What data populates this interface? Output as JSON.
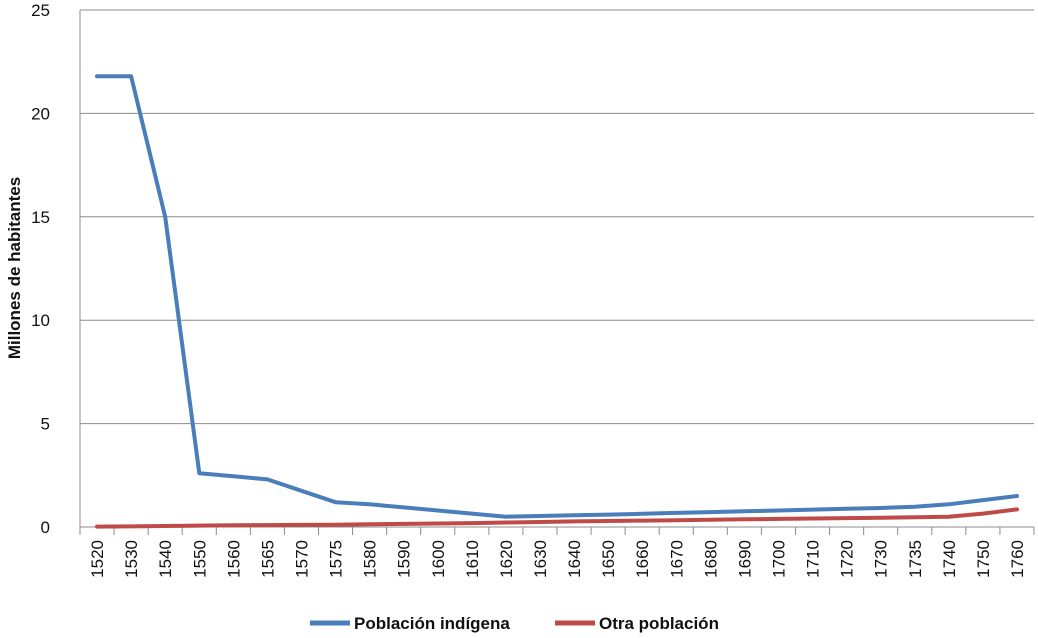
{
  "chart_data": {
    "type": "line",
    "ylabel": "Millones de habitantes",
    "ylim": [
      0,
      25
    ],
    "yticks": [
      "0",
      "5",
      "10",
      "15",
      "20",
      "25"
    ],
    "categories": [
      "1520",
      "1530",
      "1540",
      "1550",
      "1560",
      "1565",
      "1570",
      "1575",
      "1580",
      "1590",
      "1600",
      "1610",
      "1620",
      "1630",
      "1640",
      "1650",
      "1660",
      "1670",
      "1680",
      "1690",
      "1700",
      "1710",
      "1720",
      "1730",
      "1735",
      "1740",
      "1750",
      "1760"
    ],
    "series": [
      {
        "name": "Población indígena",
        "color": "#4a7ebb",
        "values": [
          21.8,
          21.8,
          15.0,
          2.6,
          2.45,
          2.3,
          1.75,
          1.2,
          1.1,
          0.95,
          0.8,
          0.65,
          0.5,
          0.53,
          0.57,
          0.6,
          0.64,
          0.68,
          0.72,
          0.76,
          0.8,
          0.84,
          0.88,
          0.92,
          0.98,
          1.1,
          1.3,
          1.5
        ]
      },
      {
        "name": "Otra población",
        "color": "#be4b48",
        "values": [
          0.02,
          0.03,
          0.05,
          0.07,
          0.08,
          0.09,
          0.1,
          0.11,
          0.13,
          0.15,
          0.17,
          0.19,
          0.22,
          0.24,
          0.27,
          0.29,
          0.31,
          0.33,
          0.35,
          0.37,
          0.39,
          0.41,
          0.43,
          0.45,
          0.47,
          0.5,
          0.65,
          0.85
        ]
      }
    ],
    "grid": true,
    "legend_position": "bottom"
  }
}
